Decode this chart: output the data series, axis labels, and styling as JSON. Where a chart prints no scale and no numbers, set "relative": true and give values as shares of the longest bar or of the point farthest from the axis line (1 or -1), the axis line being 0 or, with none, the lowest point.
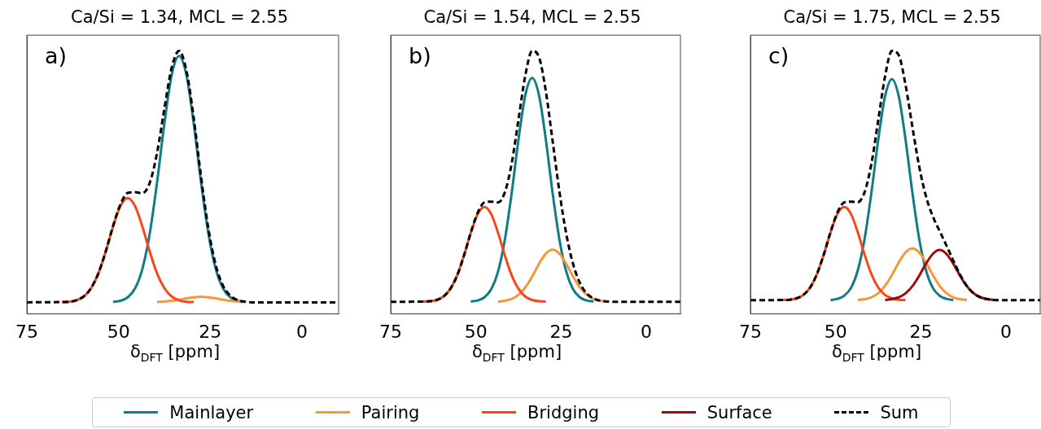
{
  "chart_data": [
    {
      "type": "line",
      "title": "Ca/Si = 1.34, MCL = 2.55",
      "xlabel": "δ$_{DFT}$ [ppm]",
      "annotations": [
        "a)"
      ],
      "relative": true,
      "xlim": [
        75,
        -10
      ],
      "xticks": [
        75,
        50,
        25,
        0
      ],
      "tick_labels": "x",
      "grid": false,
      "legend": "bottom",
      "x": [
        75,
        65.5,
        63.5,
        61.5,
        59.5,
        57.5,
        55.5,
        53.5,
        51.5,
        49.5,
        47.5,
        45.5,
        43.5,
        41.5,
        39.5,
        37.5,
        35.5,
        33.5,
        31.5,
        29.5,
        27.5,
        25.5,
        23.5,
        21.5,
        19.5,
        17.5,
        15.5,
        13.5,
        11.5,
        9.5,
        7.5,
        5.5,
        3.5,
        1.5,
        -10
      ],
      "series": [
        {
          "name": "Mainlayer",
          "color": "#0f7c86",
          "values": [
            null,
            null,
            null,
            null,
            null,
            null,
            null,
            null,
            0.046,
            0.05,
            0.063,
            0.097,
            0.171,
            0.305,
            0.5,
            0.724,
            0.909,
            0.981,
            0.909,
            0.724,
            0.5,
            0.305,
            0.171,
            0.097,
            0.063,
            0.05,
            0.046,
            null,
            null,
            null,
            null,
            null,
            null,
            null,
            null
          ]
        },
        {
          "name": "Pairing",
          "color": "#f5973a",
          "values": [
            null,
            null,
            null,
            null,
            null,
            null,
            null,
            null,
            null,
            null,
            null,
            null,
            null,
            null,
            0.045,
            0.047,
            0.05,
            0.054,
            0.059,
            0.063,
            0.065,
            0.063,
            0.059,
            0.054,
            0.05,
            0.047,
            0.045,
            null,
            null,
            null,
            null,
            null,
            null,
            null,
            null
          ]
        },
        {
          "name": "Bridging",
          "color": "#fa4616",
          "values": [
            null,
            0.045,
            0.046,
            0.052,
            0.066,
            0.098,
            0.154,
            0.237,
            0.332,
            0.41,
            0.441,
            0.41,
            0.332,
            0.237,
            0.154,
            0.098,
            0.066,
            0.052,
            0.046,
            0.045,
            null,
            null,
            null,
            null,
            null,
            null,
            null,
            null,
            null,
            null,
            null,
            null,
            null,
            null,
            null
          ]
        },
        {
          "name": "Sum",
          "color": "#000000",
          "line_style": "dashed",
          "values": [
            0.044,
            0.045,
            0.046,
            0.052,
            0.066,
            0.098,
            0.154,
            0.237,
            0.334,
            0.416,
            0.46,
            0.463,
            0.459,
            0.498,
            0.612,
            0.781,
            0.937,
            1.0,
            0.926,
            0.745,
            0.521,
            0.324,
            0.186,
            0.107,
            0.069,
            0.052,
            0.047,
            0.044,
            0.044,
            0.044,
            0.044,
            0.044,
            0.044,
            0.044,
            0.044
          ]
        }
      ]
    },
    {
      "type": "line",
      "title": "Ca/Si = 1.54, MCL = 2.55",
      "xlabel": "δ$_{DFT}$ [ppm]",
      "annotations": [
        "b)"
      ],
      "relative": true,
      "xlim": [
        75,
        -10
      ],
      "xticks": [
        75,
        50,
        25,
        0
      ],
      "tick_labels": "x",
      "grid": false,
      "legend": "bottom",
      "x": [
        75,
        65.5,
        63.5,
        61.5,
        59.5,
        57.5,
        55.5,
        53.5,
        51.5,
        49.5,
        47.5,
        45.5,
        43.5,
        41.5,
        39.5,
        37.5,
        35.5,
        33.5,
        31.5,
        29.5,
        27.5,
        25.5,
        23.5,
        21.5,
        19.5,
        17.5,
        15.5,
        13.5,
        11.5,
        9.5,
        7.5,
        5.5,
        3.5,
        1.5,
        -10
      ],
      "series": [
        {
          "name": "Mainlayer",
          "color": "#0f7c86",
          "values": [
            null,
            null,
            null,
            null,
            null,
            null,
            null,
            null,
            0.047,
            0.051,
            0.063,
            0.094,
            0.161,
            0.283,
            0.46,
            0.664,
            0.832,
            0.897,
            0.832,
            0.664,
            0.46,
            0.283,
            0.161,
            0.094,
            0.063,
            0.051,
            0.047,
            null,
            null,
            null,
            null,
            null,
            null,
            null,
            null
          ]
        },
        {
          "name": "Pairing",
          "color": "#f5973a",
          "values": [
            null,
            null,
            null,
            null,
            null,
            null,
            null,
            null,
            null,
            null,
            null,
            null,
            0.047,
            0.05,
            0.057,
            0.073,
            0.101,
            0.142,
            0.19,
            0.229,
            0.244,
            0.229,
            0.19,
            0.142,
            0.101,
            0.073,
            0.057,
            0.05,
            0.047,
            null,
            null,
            null,
            null,
            null,
            null
          ]
        },
        {
          "name": "Bridging",
          "color": "#fa4616",
          "values": [
            null,
            0.047,
            0.048,
            0.053,
            0.066,
            0.095,
            0.146,
            0.222,
            0.308,
            0.379,
            0.407,
            0.379,
            0.308,
            0.222,
            0.146,
            0.095,
            0.066,
            0.053,
            0.048,
            0.047,
            null,
            null,
            null,
            null,
            null,
            null,
            null,
            null,
            null,
            null,
            null,
            null,
            null,
            null,
            null
          ]
        },
        {
          "name": "Sum",
          "color": "#000000",
          "line_style": "dashed",
          "values": [
            0.046,
            0.047,
            0.048,
            0.053,
            0.066,
            0.095,
            0.146,
            0.222,
            0.309,
            0.384,
            0.424,
            0.427,
            0.424,
            0.463,
            0.572,
            0.74,
            0.907,
            1.0,
            0.977,
            0.848,
            0.658,
            0.465,
            0.305,
            0.19,
            0.118,
            0.078,
            0.059,
            0.05,
            0.047,
            0.046,
            0.046,
            0.046,
            0.046,
            0.046,
            0.046
          ]
        }
      ]
    },
    {
      "type": "line",
      "title": "Ca/Si = 1.75, MCL = 2.55",
      "xlabel": "δ$_{DFT}$ [ppm]",
      "annotations": [
        "c)"
      ],
      "relative": true,
      "xlim": [
        75,
        -10
      ],
      "xticks": [
        75,
        50,
        25,
        0
      ],
      "tick_labels": "x",
      "grid": false,
      "legend": "bottom",
      "x": [
        75,
        65.5,
        63.5,
        61.5,
        59.5,
        57.5,
        55.5,
        53.5,
        51.5,
        49.5,
        47.5,
        45.5,
        43.5,
        41.5,
        39.5,
        37.5,
        35.5,
        33.5,
        31.5,
        29.5,
        27.5,
        25.5,
        23.5,
        21.5,
        19.5,
        17.5,
        15.5,
        13.5,
        11.5,
        9.5,
        7.5,
        5.5,
        3.5,
        1.5,
        -10
      ],
      "series": [
        {
          "name": "Mainlayer",
          "color": "#0f7c86",
          "values": [
            null,
            null,
            null,
            null,
            null,
            null,
            null,
            null,
            0.053,
            0.057,
            0.069,
            0.099,
            0.166,
            0.286,
            0.462,
            0.663,
            0.828,
            0.893,
            0.828,
            0.663,
            0.462,
            0.286,
            0.166,
            0.099,
            0.069,
            0.057,
            0.053,
            null,
            null,
            null,
            null,
            null,
            null,
            null,
            null
          ]
        },
        {
          "name": "Pairing",
          "color": "#f5973a",
          "values": [
            null,
            null,
            null,
            null,
            null,
            null,
            null,
            null,
            null,
            null,
            null,
            null,
            0.053,
            0.056,
            0.063,
            0.079,
            0.107,
            0.148,
            0.195,
            0.234,
            0.249,
            0.234,
            0.195,
            0.148,
            0.107,
            0.079,
            0.063,
            0.056,
            0.053,
            null,
            null,
            null,
            null,
            null,
            null
          ]
        },
        {
          "name": "Bridging",
          "color": "#fa4616",
          "values": [
            null,
            0.053,
            0.054,
            0.059,
            0.072,
            0.1,
            0.151,
            0.225,
            0.31,
            0.38,
            0.407,
            0.38,
            0.31,
            0.225,
            0.151,
            0.1,
            0.072,
            0.059,
            0.054,
            0.053,
            null,
            null,
            null,
            null,
            null,
            null,
            null,
            null,
            null,
            null,
            null,
            null,
            null,
            null,
            null
          ]
        },
        {
          "name": "Surface",
          "color": "#9b0d0d",
          "values": [
            null,
            null,
            null,
            null,
            null,
            null,
            null,
            null,
            null,
            null,
            null,
            null,
            null,
            null,
            null,
            null,
            0.053,
            0.056,
            0.063,
            0.078,
            0.105,
            0.145,
            0.191,
            0.228,
            0.243,
            0.228,
            0.191,
            0.145,
            0.105,
            0.078,
            0.063,
            0.056,
            0.053,
            null,
            null
          ]
        },
        {
          "name": "Sum",
          "color": "#000000",
          "line_style": "dashed",
          "values": [
            0.052,
            0.053,
            0.054,
            0.059,
            0.072,
            0.1,
            0.151,
            0.225,
            0.311,
            0.385,
            0.424,
            0.427,
            0.425,
            0.463,
            0.572,
            0.737,
            0.904,
            1.0,
            0.984,
            0.871,
            0.712,
            0.561,
            0.447,
            0.371,
            0.315,
            0.26,
            0.203,
            0.149,
            0.106,
            0.078,
            0.063,
            0.056,
            0.053,
            0.052,
            0.052
          ]
        }
      ]
    }
  ]
}
